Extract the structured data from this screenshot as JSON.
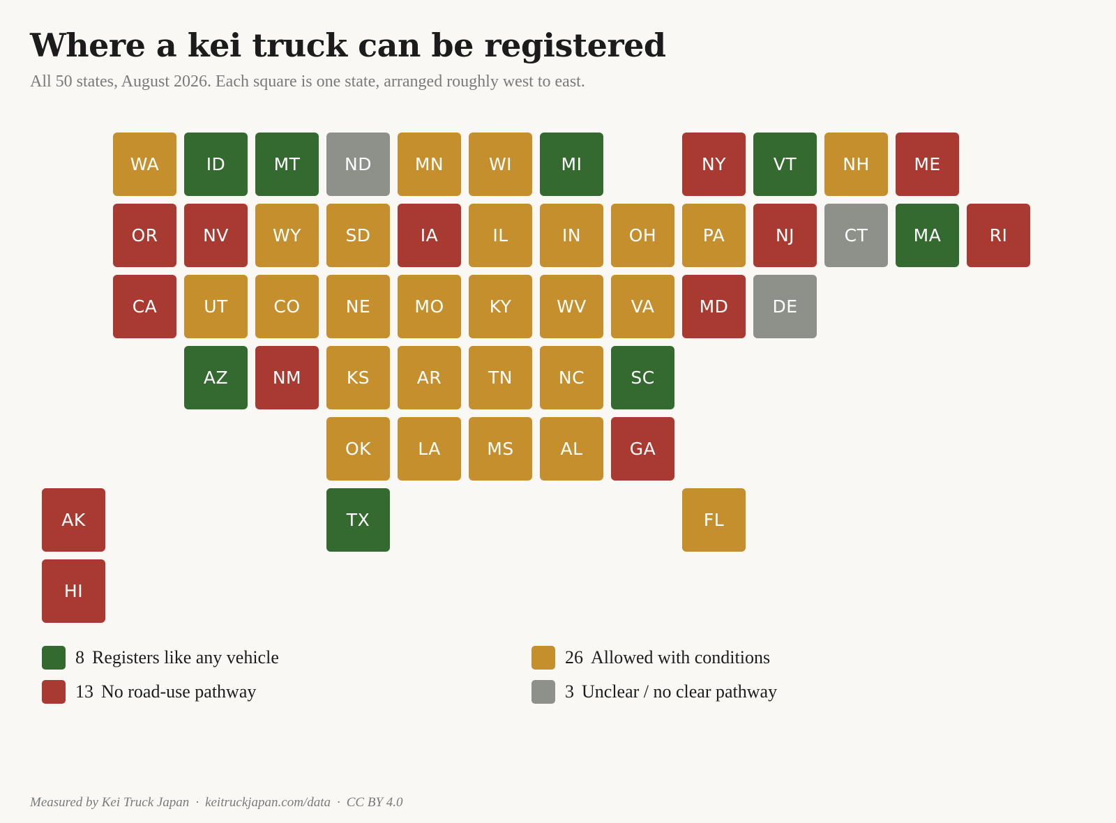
{
  "header": {
    "title": "Where a kei truck can be registered",
    "subtitle": "All 50 states, August 2026. Each square is one state, arranged roughly west to east."
  },
  "colors": {
    "registers": "#346a2f",
    "conditions": "#c58f2d",
    "none": "#a83a32",
    "unclear": "#8e918a"
  },
  "chart_data": {
    "type": "tile-grid-map",
    "categories": [
      {
        "key": "registers",
        "label": "Registers like any vehicle",
        "count": "8"
      },
      {
        "key": "conditions",
        "label": "Allowed with conditions",
        "count": "26"
      },
      {
        "key": "none",
        "label": "No road-use pathway",
        "count": "13"
      },
      {
        "key": "unclear",
        "label": "Unclear / no clear pathway",
        "count": "3"
      }
    ],
    "states": [
      {
        "abbr": "WA",
        "col": 1,
        "row": 0,
        "status": "conditions"
      },
      {
        "abbr": "ID",
        "col": 2,
        "row": 0,
        "status": "registers"
      },
      {
        "abbr": "MT",
        "col": 3,
        "row": 0,
        "status": "registers"
      },
      {
        "abbr": "ND",
        "col": 4,
        "row": 0,
        "status": "unclear"
      },
      {
        "abbr": "MN",
        "col": 5,
        "row": 0,
        "status": "conditions"
      },
      {
        "abbr": "WI",
        "col": 6,
        "row": 0,
        "status": "conditions"
      },
      {
        "abbr": "MI",
        "col": 7,
        "row": 0,
        "status": "registers"
      },
      {
        "abbr": "NY",
        "col": 9,
        "row": 0,
        "status": "none"
      },
      {
        "abbr": "VT",
        "col": 10,
        "row": 0,
        "status": "registers"
      },
      {
        "abbr": "NH",
        "col": 11,
        "row": 0,
        "status": "conditions"
      },
      {
        "abbr": "ME",
        "col": 12,
        "row": 0,
        "status": "none"
      },
      {
        "abbr": "OR",
        "col": 1,
        "row": 1,
        "status": "none"
      },
      {
        "abbr": "NV",
        "col": 2,
        "row": 1,
        "status": "none"
      },
      {
        "abbr": "WY",
        "col": 3,
        "row": 1,
        "status": "conditions"
      },
      {
        "abbr": "SD",
        "col": 4,
        "row": 1,
        "status": "conditions"
      },
      {
        "abbr": "IA",
        "col": 5,
        "row": 1,
        "status": "none"
      },
      {
        "abbr": "IL",
        "col": 6,
        "row": 1,
        "status": "conditions"
      },
      {
        "abbr": "IN",
        "col": 7,
        "row": 1,
        "status": "conditions"
      },
      {
        "abbr": "OH",
        "col": 8,
        "row": 1,
        "status": "conditions"
      },
      {
        "abbr": "PA",
        "col": 9,
        "row": 1,
        "status": "conditions"
      },
      {
        "abbr": "NJ",
        "col": 10,
        "row": 1,
        "status": "none"
      },
      {
        "abbr": "CT",
        "col": 11,
        "row": 1,
        "status": "unclear"
      },
      {
        "abbr": "MA",
        "col": 12,
        "row": 1,
        "status": "registers"
      },
      {
        "abbr": "RI",
        "col": 13,
        "row": 1,
        "status": "none"
      },
      {
        "abbr": "CA",
        "col": 1,
        "row": 2,
        "status": "none"
      },
      {
        "abbr": "UT",
        "col": 2,
        "row": 2,
        "status": "conditions"
      },
      {
        "abbr": "CO",
        "col": 3,
        "row": 2,
        "status": "conditions"
      },
      {
        "abbr": "NE",
        "col": 4,
        "row": 2,
        "status": "conditions"
      },
      {
        "abbr": "MO",
        "col": 5,
        "row": 2,
        "status": "conditions"
      },
      {
        "abbr": "KY",
        "col": 6,
        "row": 2,
        "status": "conditions"
      },
      {
        "abbr": "WV",
        "col": 7,
        "row": 2,
        "status": "conditions"
      },
      {
        "abbr": "VA",
        "col": 8,
        "row": 2,
        "status": "conditions"
      },
      {
        "abbr": "MD",
        "col": 9,
        "row": 2,
        "status": "none"
      },
      {
        "abbr": "DE",
        "col": 10,
        "row": 2,
        "status": "unclear"
      },
      {
        "abbr": "AZ",
        "col": 2,
        "row": 3,
        "status": "registers"
      },
      {
        "abbr": "NM",
        "col": 3,
        "row": 3,
        "status": "none"
      },
      {
        "abbr": "KS",
        "col": 4,
        "row": 3,
        "status": "conditions"
      },
      {
        "abbr": "AR",
        "col": 5,
        "row": 3,
        "status": "conditions"
      },
      {
        "abbr": "TN",
        "col": 6,
        "row": 3,
        "status": "conditions"
      },
      {
        "abbr": "NC",
        "col": 7,
        "row": 3,
        "status": "conditions"
      },
      {
        "abbr": "SC",
        "col": 8,
        "row": 3,
        "status": "registers"
      },
      {
        "abbr": "OK",
        "col": 4,
        "row": 4,
        "status": "conditions"
      },
      {
        "abbr": "LA",
        "col": 5,
        "row": 4,
        "status": "conditions"
      },
      {
        "abbr": "MS",
        "col": 6,
        "row": 4,
        "status": "conditions"
      },
      {
        "abbr": "AL",
        "col": 7,
        "row": 4,
        "status": "conditions"
      },
      {
        "abbr": "GA",
        "col": 8,
        "row": 4,
        "status": "none"
      },
      {
        "abbr": "AK",
        "col": 0,
        "row": 5,
        "status": "none"
      },
      {
        "abbr": "TX",
        "col": 4,
        "row": 5,
        "status": "registers"
      },
      {
        "abbr": "FL",
        "col": 9,
        "row": 5,
        "status": "conditions"
      },
      {
        "abbr": "HI",
        "col": 0,
        "row": 6,
        "status": "none"
      }
    ]
  },
  "footer": {
    "credit": "Measured by Kei Truck Japan",
    "url": "keitruckjapan.com/data",
    "license": "CC BY 4.0",
    "separator": "·"
  }
}
